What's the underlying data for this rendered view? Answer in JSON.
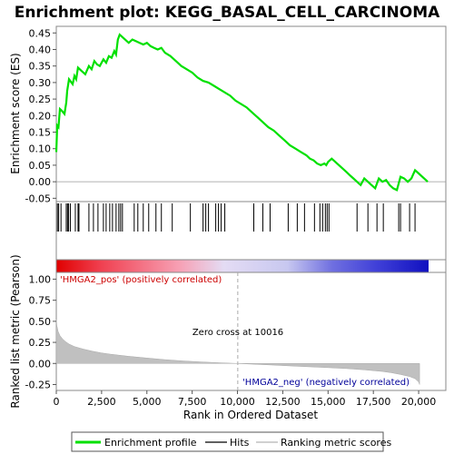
{
  "chart_data": {
    "type": "line",
    "title": "Enrichment plot: KEGG_BASAL_CELL_CARCINOMA",
    "xlabel": "Rank in Ordered Dataset",
    "xlim": [
      0,
      21500
    ],
    "x_ticks": [
      0,
      2500,
      5000,
      7500,
      10000,
      12500,
      15000,
      17500,
      20000
    ],
    "x_tick_labels": [
      "0",
      "2,500",
      "5,000",
      "7,500",
      "10,000",
      "12,500",
      "15,000",
      "17,500",
      "20,000"
    ],
    "es_panel": {
      "ylabel": "Enrichment score (ES)",
      "ylim": [
        -0.06,
        0.47
      ],
      "y_ticks": [
        -0.05,
        0.0,
        0.05,
        0.1,
        0.15,
        0.2,
        0.25,
        0.3,
        0.35,
        0.4,
        0.45
      ],
      "y_tick_labels": [
        "-0.05",
        "0.00",
        "0.05",
        "0.10",
        "0.15",
        "0.20",
        "0.25",
        "0.30",
        "0.35",
        "0.40",
        "0.45"
      ],
      "series": [
        {
          "name": "Enrichment profile",
          "color": "#00e000",
          "x": [
            0,
            50,
            120,
            200,
            300,
            450,
            550,
            600,
            700,
            900,
            1000,
            1100,
            1200,
            1400,
            1600,
            1800,
            1950,
            2100,
            2250,
            2400,
            2600,
            2750,
            2900,
            3050,
            3200,
            3300,
            3400,
            3500,
            3600,
            3800,
            4000,
            4200,
            4400,
            4600,
            4800,
            5000,
            5200,
            5400,
            5600,
            5800,
            6000,
            6300,
            6600,
            6900,
            7200,
            7500,
            7800,
            8100,
            8400,
            8700,
            9000,
            9300,
            9600,
            9900,
            10200,
            10500,
            10800,
            11100,
            11400,
            11700,
            12000,
            12300,
            12600,
            12900,
            13200,
            13500,
            13800,
            14000,
            14200,
            14400,
            14600,
            14800,
            14900,
            15000,
            15200,
            15400,
            15600,
            15800,
            16000,
            16200,
            16400,
            16600,
            16800,
            17000,
            17200,
            17400,
            17600,
            17800,
            18000,
            18200,
            18400,
            18600,
            18800,
            19000,
            19200,
            19400,
            19600,
            19800,
            20000,
            20200,
            20400,
            20500
          ],
          "y": [
            0.09,
            0.17,
            0.165,
            0.22,
            0.215,
            0.205,
            0.24,
            0.275,
            0.31,
            0.295,
            0.32,
            0.31,
            0.345,
            0.335,
            0.325,
            0.35,
            0.34,
            0.365,
            0.355,
            0.35,
            0.37,
            0.36,
            0.38,
            0.375,
            0.395,
            0.385,
            0.43,
            0.445,
            0.44,
            0.43,
            0.42,
            0.43,
            0.425,
            0.42,
            0.415,
            0.42,
            0.41,
            0.405,
            0.4,
            0.405,
            0.39,
            0.38,
            0.365,
            0.35,
            0.34,
            0.33,
            0.315,
            0.305,
            0.3,
            0.29,
            0.28,
            0.27,
            0.26,
            0.245,
            0.235,
            0.225,
            0.21,
            0.195,
            0.18,
            0.165,
            0.155,
            0.14,
            0.125,
            0.11,
            0.1,
            0.09,
            0.08,
            0.07,
            0.065,
            0.055,
            0.05,
            0.055,
            0.05,
            0.06,
            0.07,
            0.06,
            0.05,
            0.04,
            0.03,
            0.02,
            0.01,
            0.0,
            -0.01,
            0.01,
            0.0,
            -0.01,
            -0.02,
            0.01,
            0.0,
            0.005,
            -0.01,
            -0.02,
            -0.025,
            0.015,
            0.01,
            0.0,
            0.01,
            0.035,
            0.025,
            0.015,
            0.005,
            0.0
          ]
        }
      ]
    },
    "hits_panel": {
      "series_name": "Hits",
      "color": "#000000",
      "hit_ranks": [
        60,
        130,
        260,
        550,
        620,
        680,
        780,
        1050,
        1200,
        1250,
        1800,
        2050,
        2300,
        2600,
        2750,
        2950,
        3100,
        3300,
        3450,
        3550,
        3650,
        4300,
        4500,
        4800,
        5100,
        5500,
        5800,
        6400,
        7400,
        8100,
        8250,
        8400,
        8800,
        8950,
        9100,
        9300,
        10900,
        11400,
        11800,
        12800,
        13300,
        13700,
        14250,
        14550,
        14700,
        14850,
        14950,
        15050,
        16600,
        17200,
        17700,
        18050,
        18900,
        19000,
        19500,
        19800
      ]
    },
    "metric_panel": {
      "ylabel": "Ranked list metric (Pearson)",
      "ylim": [
        -0.32,
        1.08
      ],
      "y_ticks": [
        -0.25,
        0.0,
        0.25,
        0.5,
        0.75,
        1.0
      ],
      "y_tick_labels": [
        "-0.25",
        "0.00",
        "0.25",
        "0.50",
        "0.75",
        "1.00"
      ],
      "series_name": "Ranking metric scores",
      "fill_color": "#c0c0c0",
      "curve": {
        "x": [
          0,
          30,
          100,
          200,
          350,
          500,
          700,
          1000,
          1500,
          2000,
          2500,
          3000,
          4000,
          5000,
          6000,
          7000,
          8000,
          9000,
          10016,
          11000,
          12000,
          13000,
          14000,
          15000,
          16000,
          17000,
          18000,
          18500,
          19000,
          19500,
          19800,
          20000,
          20050
        ],
        "y": [
          0.52,
          0.45,
          0.38,
          0.33,
          0.29,
          0.26,
          0.23,
          0.2,
          0.17,
          0.145,
          0.125,
          0.11,
          0.085,
          0.065,
          0.045,
          0.03,
          0.018,
          0.008,
          0.0,
          -0.01,
          -0.02,
          -0.03,
          -0.04,
          -0.05,
          -0.06,
          -0.075,
          -0.095,
          -0.11,
          -0.13,
          -0.155,
          -0.18,
          -0.22,
          -0.25
        ]
      },
      "zero_cross_label": "Zero cross at 10016",
      "zero_cross_rank": 10016,
      "pos_label": "'HMGA2_pos' (positively correlated)",
      "neg_label": "'HMGA2_neg' (negatively correlated)",
      "pos_label_color": "#cc0000",
      "neg_label_color": "#000099"
    },
    "colorbar": {
      "stops": [
        {
          "at": 0.0,
          "color": "#e00000"
        },
        {
          "at": 0.12,
          "color": "#f04050"
        },
        {
          "at": 0.33,
          "color": "#f7a0b4"
        },
        {
          "at": 0.45,
          "color": "#e4dcf4"
        },
        {
          "at": 0.62,
          "color": "#c8c8f0"
        },
        {
          "at": 0.74,
          "color": "#7070e0"
        },
        {
          "at": 0.86,
          "color": "#4040d8"
        },
        {
          "at": 1.0,
          "color": "#1010c0"
        }
      ]
    },
    "legend": {
      "placement": "bottom",
      "items": [
        {
          "label": "Enrichment profile",
          "color": "#00e000",
          "kind": "thick-line"
        },
        {
          "label": "Hits",
          "color": "#000000",
          "kind": "line"
        },
        {
          "label": "Ranking metric scores",
          "color": "#c0c0c0",
          "kind": "line"
        }
      ]
    }
  }
}
